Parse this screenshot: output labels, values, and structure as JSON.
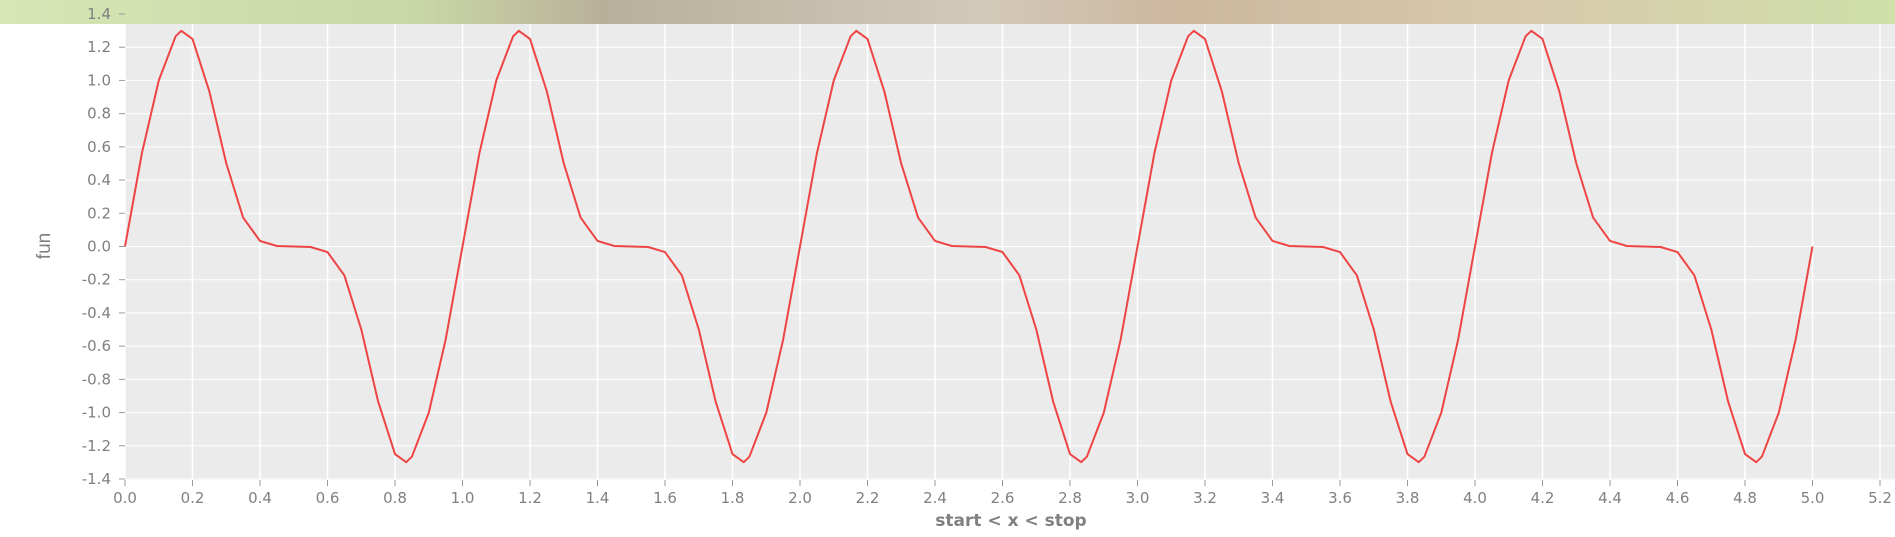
{
  "chart_data": {
    "type": "line",
    "title": "",
    "xlabel": "start < x < stop",
    "ylabel": "fun",
    "xlim": [
      0.0,
      5.2
    ],
    "ylim": [
      -1.4,
      1.4
    ],
    "x_ticks": [
      "0.0",
      "0.2",
      "0.4",
      "0.6",
      "0.8",
      "1.0",
      "1.2",
      "1.4",
      "1.6",
      "1.8",
      "2.0",
      "2.2",
      "2.4",
      "2.6",
      "2.8",
      "3.0",
      "3.2",
      "3.4",
      "3.6",
      "3.8",
      "4.0",
      "4.2",
      "4.4",
      "4.6",
      "4.8",
      "5.0",
      "5.2"
    ],
    "y_ticks": [
      "-1.4",
      "-1.2",
      "-1.0",
      "-0.8",
      "-0.6",
      "-0.4",
      "-0.2",
      "0.0",
      "0.2",
      "0.4",
      "0.6",
      "0.8",
      "1.0",
      "1.2",
      "1.4"
    ],
    "grid": true,
    "legend": "none",
    "colors": {
      "line": "#ee4444",
      "panel": "#ebebeb",
      "grid": "#ffffff",
      "text": "#808080"
    },
    "series": [
      {
        "x": [
          0.0,
          0.05,
          0.1,
          0.15,
          0.1667,
          0.2,
          0.25,
          0.3,
          0.35,
          0.4,
          0.45,
          0.5,
          0.55,
          0.6,
          0.65,
          0.7,
          0.75,
          0.8,
          0.8333,
          0.85,
          0.9,
          0.95,
          1.0,
          1.05,
          1.1,
          1.15,
          1.1667,
          1.2,
          1.25,
          1.3,
          1.35,
          1.4,
          1.45,
          1.5,
          1.55,
          1.6,
          1.65,
          1.7,
          1.75,
          1.8,
          1.8333,
          1.85,
          1.9,
          1.95,
          2.0,
          2.05,
          2.1,
          2.15,
          2.1667,
          2.2,
          2.25,
          2.3,
          2.35,
          2.4,
          2.45,
          2.5,
          2.55,
          2.6,
          2.65,
          2.7,
          2.75,
          2.8,
          2.8333,
          2.85,
          2.9,
          2.95,
          3.0,
          3.05,
          3.1,
          3.15,
          3.1667,
          3.2,
          3.25,
          3.3,
          3.35,
          3.4,
          3.45,
          3.5,
          3.55,
          3.6,
          3.65,
          3.7,
          3.75,
          3.8,
          3.8333,
          3.85,
          3.9,
          3.95,
          4.0,
          4.05,
          4.1,
          4.15,
          4.1667,
          4.2,
          4.25,
          4.3,
          4.35,
          4.4,
          4.45,
          4.5,
          4.55,
          4.6,
          4.65,
          4.7,
          4.75,
          4.8,
          4.8333,
          4.85,
          4.9,
          4.95,
          5.0
        ],
        "y": [
          0.0,
          0.562,
          1.0,
          1.266,
          1.299,
          1.25,
          0.933,
          0.5,
          0.174,
          0.034,
          0.003,
          0.0,
          -0.003,
          -0.034,
          -0.174,
          -0.5,
          -0.933,
          -1.25,
          -1.299,
          -1.266,
          -1.0,
          -0.562,
          0.0,
          0.562,
          1.0,
          1.266,
          1.299,
          1.25,
          0.933,
          0.5,
          0.174,
          0.034,
          0.003,
          0.0,
          -0.003,
          -0.034,
          -0.174,
          -0.5,
          -0.933,
          -1.25,
          -1.299,
          -1.266,
          -1.0,
          -0.562,
          0.0,
          0.562,
          1.0,
          1.266,
          1.299,
          1.25,
          0.933,
          0.5,
          0.174,
          0.034,
          0.003,
          0.0,
          -0.003,
          -0.034,
          -0.174,
          -0.5,
          -0.933,
          -1.25,
          -1.299,
          -1.266,
          -1.0,
          -0.562,
          0.0,
          0.562,
          1.0,
          1.266,
          1.299,
          1.25,
          0.933,
          0.5,
          0.174,
          0.034,
          0.003,
          0.0,
          -0.003,
          -0.034,
          -0.174,
          -0.5,
          -0.933,
          -1.25,
          -1.299,
          -1.266,
          -1.0,
          -0.562,
          0.0,
          0.562,
          1.0,
          1.266,
          1.299,
          1.25,
          0.933,
          0.5,
          0.174,
          0.034,
          0.003,
          0.0,
          -0.003,
          -0.034,
          -0.174,
          -0.5,
          -0.933,
          -1.25,
          -1.299,
          -1.266,
          -1.0,
          -0.562,
          0.0
        ]
      }
    ]
  }
}
